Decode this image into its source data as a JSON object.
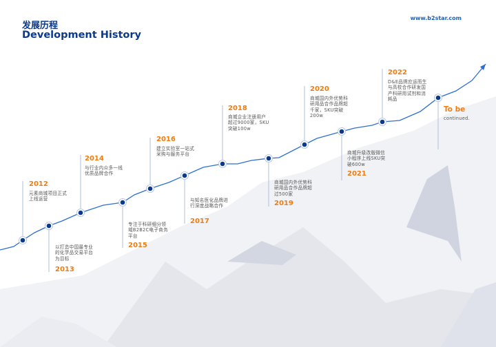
{
  "header": {
    "title_cn": "发展历程",
    "title_en": "Development History",
    "website": "www.b2star.com"
  },
  "colors": {
    "accent": "#f07c0f",
    "line": "#2d6fd1",
    "node": "#0b3a8c",
    "title": "#0b3a8c"
  },
  "milestones": [
    {
      "year": "2012",
      "desc": "元素商城项目正式上线运营"
    },
    {
      "year": "2013",
      "desc": "以打造中国最专业的化学品交易平台为目标"
    },
    {
      "year": "2014",
      "desc": "与行业内众多一线优质品牌合作"
    },
    {
      "year": "2015",
      "desc": "专注于科研细分领域B2B2C电子商务平台"
    },
    {
      "year": "2016",
      "desc": "建立实验室一站式采购与服务平台"
    },
    {
      "year": "2017",
      "desc": "与知名医化品牌进行深度战略合作"
    },
    {
      "year": "2018",
      "desc": "商城企业注册用户超过9000家，SKU突破100w"
    },
    {
      "year": "2019",
      "desc": "商城国内外优势科研用品合作品牌超过500家"
    },
    {
      "year": "2020",
      "desc": "商城国内外优势科研用品合作品牌超千家，SKU突破200w"
    },
    {
      "year": "2021",
      "desc": "商城升级改版微信小程序上线SKU突破600w"
    },
    {
      "year": "2022",
      "desc": "D&E品牌应运而生与高校合作研发国产科研用试剂和消耗品"
    },
    {
      "year": "To be",
      "desc": "continued."
    }
  ]
}
